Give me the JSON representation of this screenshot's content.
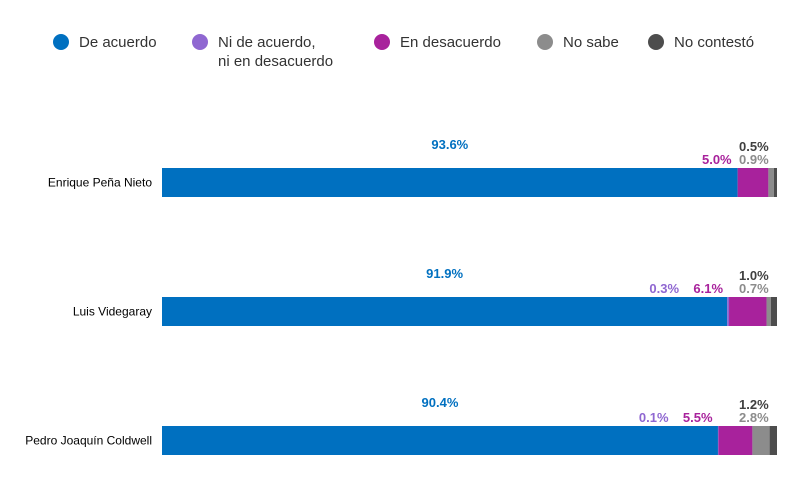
{
  "chart_data": {
    "type": "bar",
    "orientation": "horizontal",
    "stacked": true,
    "xlim": [
      0,
      100
    ],
    "legend_position": "top",
    "categories": [
      "Enrique Peña Nieto",
      "Luis Videgaray",
      "Pedro Joaquín Coldwell"
    ],
    "series": [
      {
        "name": "De acuerdo",
        "color": "#0070C0",
        "values": [
          93.6,
          91.9,
          90.4
        ]
      },
      {
        "name": "Ni de acuerdo, ni en desacuerdo",
        "color": "#8F67D1",
        "values": [
          null,
          0.3,
          0.1
        ]
      },
      {
        "name": "En desacuerdo",
        "color": "#A8229C",
        "values": [
          5.0,
          6.1,
          5.5
        ]
      },
      {
        "name": "No sabe",
        "color": "#8C8C8C",
        "values": [
          0.9,
          0.7,
          2.8
        ]
      },
      {
        "name": "No contestó",
        "color": "#4D4D4D",
        "values": [
          0.5,
          1.0,
          1.2
        ]
      }
    ],
    "value_labels": [
      [
        "93.6%",
        "",
        "5.0%",
        "0.9%",
        "0.5%"
      ],
      [
        "91.9%",
        "0.3%",
        "6.1%",
        "0.7%",
        "1.0%"
      ],
      [
        "90.4%",
        "0.1%",
        "5.5%",
        "2.8%",
        "1.2%"
      ]
    ],
    "label_colors": [
      "#0070C0",
      "#8F67D1",
      "#A8229C",
      "#8C8C8C",
      "#404040"
    ]
  }
}
